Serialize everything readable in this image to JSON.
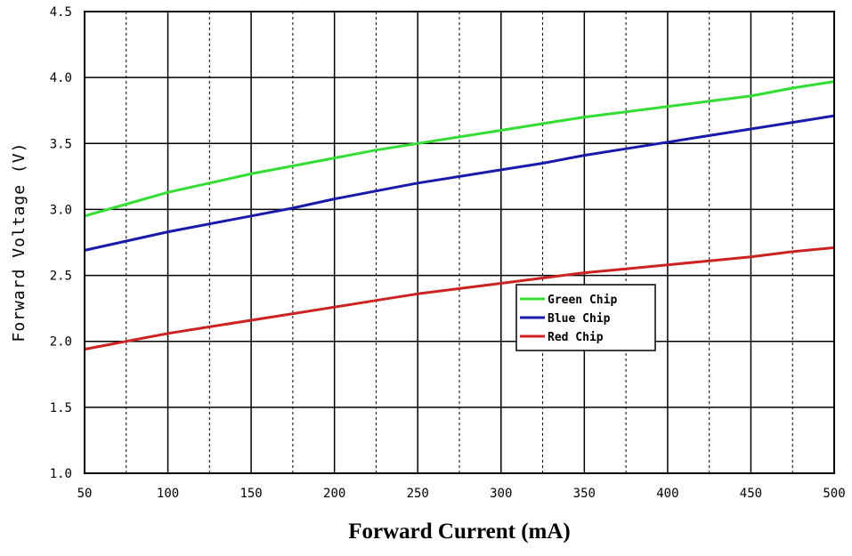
{
  "chart_data": {
    "type": "line",
    "title": "",
    "xlabel": "Forward Current (mA)",
    "ylabel": "Forward Voltage (V)",
    "xlim": [
      50,
      500
    ],
    "ylim": [
      1.0,
      4.5
    ],
    "x_ticks": [
      "50",
      "100",
      "150",
      "200",
      "250",
      "300",
      "350",
      "400",
      "450",
      "500"
    ],
    "y_ticks": [
      "1.0",
      "1.5",
      "2.0",
      "2.5",
      "3.0",
      "3.5",
      "4.0",
      "4.5"
    ],
    "grid": true,
    "legend_position": "center-right",
    "x": [
      50,
      75,
      100,
      125,
      150,
      175,
      200,
      225,
      250,
      275,
      300,
      325,
      350,
      375,
      400,
      425,
      450,
      475,
      500
    ],
    "series": [
      {
        "name": "Green Chip",
        "color": "#33dd33",
        "values": [
          2.95,
          3.04,
          3.13,
          3.2,
          3.27,
          3.33,
          3.39,
          3.45,
          3.5,
          3.55,
          3.6,
          3.65,
          3.7,
          3.74,
          3.78,
          3.82,
          3.86,
          3.92,
          3.97
        ]
      },
      {
        "name": "Blue Chip",
        "color": "#1a1aaa",
        "values": [
          2.69,
          2.76,
          2.83,
          2.89,
          2.95,
          3.01,
          3.08,
          3.14,
          3.2,
          3.25,
          3.3,
          3.35,
          3.41,
          3.46,
          3.51,
          3.56,
          3.61,
          3.66,
          3.71
        ]
      },
      {
        "name": "Red Chip",
        "color": "#cc2222",
        "values": [
          1.94,
          2.0,
          2.06,
          2.11,
          2.16,
          2.21,
          2.26,
          2.31,
          2.36,
          2.4,
          2.44,
          2.48,
          2.52,
          2.55,
          2.58,
          2.61,
          2.64,
          2.68,
          2.71
        ]
      }
    ]
  }
}
